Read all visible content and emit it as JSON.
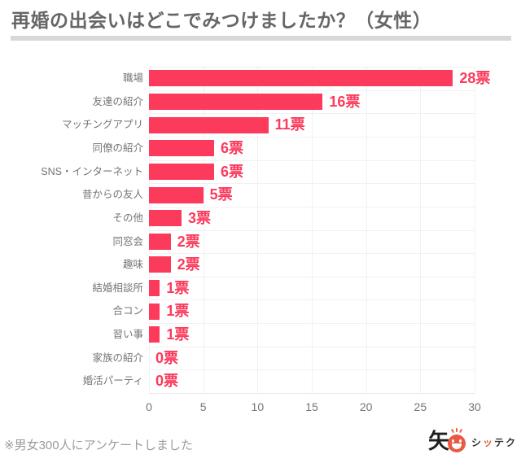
{
  "title": "再婚の出会いはどこでみつけましたか？（女性）",
  "footnote": "※男女300人にアンケートしました",
  "logo": {
    "kanji": "矢",
    "face_icon": "smiley-sun-face",
    "parts": [
      {
        "text": "シ",
        "accent": false
      },
      {
        "text": "ッ",
        "accent": true
      },
      {
        "text": "テク",
        "accent": false
      }
    ]
  },
  "colors": {
    "bar": "#FB3A5C",
    "value_label": "#FB3A5C",
    "title": "#666666",
    "category_label": "#757575",
    "tick_label": "#757575",
    "divider": "#D8D8D8",
    "gridline": "#F1F1F4",
    "footnote": "#9B9B9B",
    "logo_accent": "#E85A41"
  },
  "chart_data": {
    "type": "bar",
    "orientation": "horizontal",
    "title": "再婚の出会いはどこでみつけましたか？（女性）",
    "categories": [
      "職場",
      "友達の紹介",
      "マッチングアプリ",
      "同僚の紹介",
      "SNS・インターネット",
      "昔からの友人",
      "その他",
      "同窓会",
      "趣味",
      "結婚相談所",
      "合コン",
      "習い事",
      "家族の紹介",
      "婚活パーティ"
    ],
    "values": [
      28,
      16,
      11,
      6,
      6,
      5,
      3,
      2,
      2,
      1,
      1,
      1,
      0,
      0
    ],
    "value_suffix": "票",
    "value_labels": [
      "28票",
      "16票",
      "11票",
      "6票",
      "6票",
      "5票",
      "3票",
      "2票",
      "2票",
      "1票",
      "1票",
      "1票",
      "0票",
      "0票"
    ],
    "x_ticks": [
      0,
      5,
      10,
      15,
      20,
      25,
      30
    ],
    "xlim": [
      0,
      30
    ],
    "xlabel": "",
    "ylabel": "",
    "grid": true,
    "legend": "none"
  }
}
